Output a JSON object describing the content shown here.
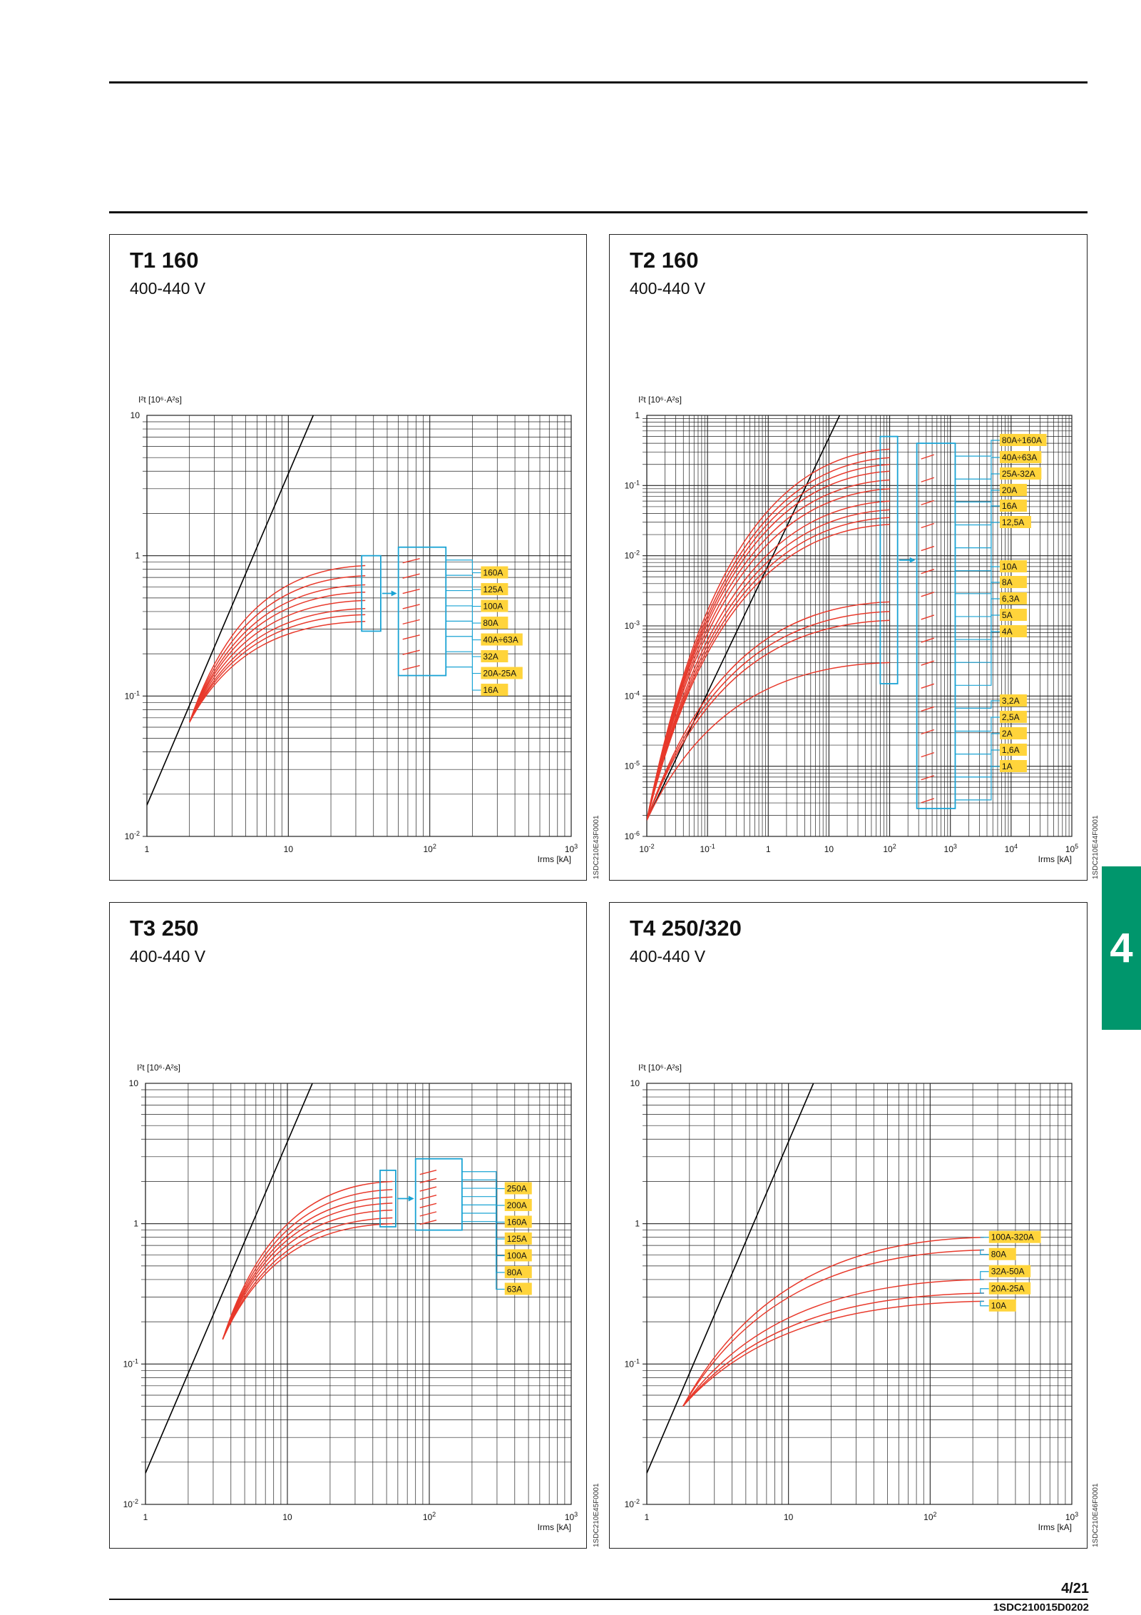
{
  "page": {
    "number": "4/21",
    "doc_code": "1SDC210015D0202",
    "section_tab": "4",
    "accent_color": "#00966c"
  },
  "chart_data": [
    {
      "type": "line",
      "title": "T1 160",
      "subtitle": "400-440 V",
      "ylabel": "I²t [10⁶·A²s]",
      "xlabel": "Irms [kA]",
      "x_scale": "log",
      "y_scale": "log",
      "xlim": [
        1,
        1000
      ],
      "ylim": [
        0.01,
        10
      ],
      "xticks": [
        {
          "v": 1,
          "t": "1"
        },
        {
          "v": 10,
          "t": "10"
        },
        {
          "v": 100,
          "t": "10",
          "e": "2"
        },
        {
          "v": 1000,
          "t": "10",
          "e": "3"
        }
      ],
      "yticks": [
        {
          "v": 0.01,
          "t": "10",
          "e": "-2"
        },
        {
          "v": 0.1,
          "t": "10",
          "e": "-1"
        },
        {
          "v": 1,
          "t": "1"
        },
        {
          "v": 10,
          "t": "10"
        }
      ],
      "code": "1SDC210E43F0001",
      "reference_line": {
        "x1": 1,
        "y1": 0.0167,
        "x2": 15,
        "y2": 10
      },
      "curve_start": [
        2,
        0.065
      ],
      "curve_end_x": 35,
      "series_end_y": [
        0.85,
        0.72,
        0.62,
        0.55,
        0.48,
        0.42,
        0.38,
        0.34
      ],
      "labels": [
        "160A",
        "125A",
        "100A",
        "80A",
        "40A÷63A",
        "32A",
        "20A-25A",
        "16A"
      ],
      "box1": {
        "x1": 33,
        "x2": 45,
        "y1": 0.29,
        "y2": 1.0
      },
      "box2": {
        "x1": 60,
        "x2": 130,
        "y1": 0.14,
        "y2": 1.15
      },
      "label_x": 230
    },
    {
      "type": "line",
      "title": "T2 160",
      "subtitle": "400-440 V",
      "ylabel": "I²t [10⁶·A²s]",
      "xlabel": "Irms [kA]",
      "x_scale": "log",
      "y_scale": "log",
      "xlim": [
        0.01,
        100000
      ],
      "ylim": [
        1e-06,
        1
      ],
      "xticks": [
        {
          "v": 0.01,
          "t": "10",
          "e": "-2"
        },
        {
          "v": 0.1,
          "t": "10",
          "e": "-1"
        },
        {
          "v": 1,
          "t": "1"
        },
        {
          "v": 10,
          "t": "10"
        },
        {
          "v": 100,
          "t": "10",
          "e": "2"
        },
        {
          "v": 1000,
          "t": "10",
          "e": "3"
        },
        {
          "v": 10000,
          "t": "10",
          "e": "4"
        },
        {
          "v": 100000,
          "t": "10",
          "e": "5"
        }
      ],
      "yticks": [
        {
          "v": 1e-06,
          "t": "10",
          "e": "-6"
        },
        {
          "v": 1e-05,
          "t": "10",
          "e": "-5"
        },
        {
          "v": 0.0001,
          "t": "10",
          "e": "-4"
        },
        {
          "v": 0.001,
          "t": "10",
          "e": "-3"
        },
        {
          "v": 0.01,
          "t": "10",
          "e": "-2"
        },
        {
          "v": 0.1,
          "t": "10",
          "e": "-1"
        },
        {
          "v": 1,
          "t": "1"
        }
      ],
      "code": "1SDC210E44F0001",
      "reference_line": {
        "x1": 0.01,
        "y1": 1.7e-06,
        "x2": 15,
        "y2": 1
      },
      "curve_start": [
        0.01,
        1.7e-06
      ],
      "curve_end_x": 100,
      "series_end_y": [
        0.33,
        0.25,
        0.2,
        0.16,
        0.12,
        0.09,
        0.06,
        0.045,
        0.035,
        0.028,
        0.0022,
        0.0016,
        0.0012,
        0.0003
      ],
      "labels": [
        "80A÷160A",
        "40A÷63A",
        "25A-32A",
        "20A",
        "16A",
        "12,5A",
        "10A",
        "8A",
        "6,3A",
        "5A",
        "4A",
        "3,2A",
        "2,5A",
        "2A",
        "1,6A",
        "1A"
      ],
      "box1": {
        "x1": 70,
        "x2": 135,
        "y1": 0.00015,
        "y2": 0.5
      },
      "box2": {
        "x1": 280,
        "x2": 1200,
        "y1": 2.5e-06,
        "y2": 0.4
      },
      "label_x": 6500
    },
    {
      "type": "line",
      "title": "T3 250",
      "subtitle": "400-440 V",
      "ylabel": "I²t [10⁶·A²s]",
      "xlabel": "Irms [kA]",
      "x_scale": "log",
      "y_scale": "log",
      "xlim": [
        1,
        1000
      ],
      "ylim": [
        0.01,
        10
      ],
      "xticks": [
        {
          "v": 1,
          "t": "1"
        },
        {
          "v": 10,
          "t": "10"
        },
        {
          "v": 100,
          "t": "10",
          "e": "2"
        },
        {
          "v": 1000,
          "t": "10",
          "e": "3"
        }
      ],
      "yticks": [
        {
          "v": 0.01,
          "t": "10",
          "e": "-2"
        },
        {
          "v": 0.1,
          "t": "10",
          "e": "-1"
        },
        {
          "v": 1,
          "t": "1"
        },
        {
          "v": 10,
          "t": "10"
        }
      ],
      "code": "1SDC210E45F0001",
      "reference_line": {
        "x1": 1,
        "y1": 0.0167,
        "x2": 15,
        "y2": 10
      },
      "curve_start": [
        3.5,
        0.15
      ],
      "curve_end_x": 55,
      "series_end_y": [
        2.0,
        1.75,
        1.55,
        1.4,
        1.25,
        1.1,
        1.0
      ],
      "labels": [
        "250A",
        "200A",
        "160A",
        "125A",
        "100A",
        "80A",
        "63A"
      ],
      "box1": {
        "x1": 45,
        "x2": 58,
        "y1": 0.95,
        "y2": 2.4
      },
      "box2": {
        "x1": 80,
        "x2": 170,
        "y1": 0.9,
        "y2": 2.9
      },
      "label_x": 340
    },
    {
      "type": "line",
      "title": "T4 250/320",
      "subtitle": "400-440 V",
      "ylabel": "I²t [10⁶·A²s]",
      "xlabel": "Irms [kA]",
      "x_scale": "log",
      "y_scale": "log",
      "xlim": [
        1,
        1000
      ],
      "ylim": [
        0.01,
        10
      ],
      "xticks": [
        {
          "v": 1,
          "t": "1"
        },
        {
          "v": 10,
          "t": "10"
        },
        {
          "v": 100,
          "t": "10",
          "e": "2"
        },
        {
          "v": 1000,
          "t": "10",
          "e": "3"
        }
      ],
      "yticks": [
        {
          "v": 0.01,
          "t": "10",
          "e": "-2"
        },
        {
          "v": 0.1,
          "t": "10",
          "e": "-1"
        },
        {
          "v": 1,
          "t": "1"
        },
        {
          "v": 10,
          "t": "10"
        }
      ],
      "code": "1SDC210E46F0001",
      "reference_line": {
        "x1": 1,
        "y1": 0.0167,
        "x2": 15,
        "y2": 10
      },
      "curve_start": [
        1.8,
        0.05
      ],
      "curve_end_x": 240,
      "series_end_y": [
        0.8,
        0.65,
        0.4,
        0.32,
        0.28
      ],
      "labels": [
        "100A-320A",
        "80A",
        "32A-50A",
        "20A-25A",
        "10A"
      ],
      "label_x": 260
    }
  ]
}
